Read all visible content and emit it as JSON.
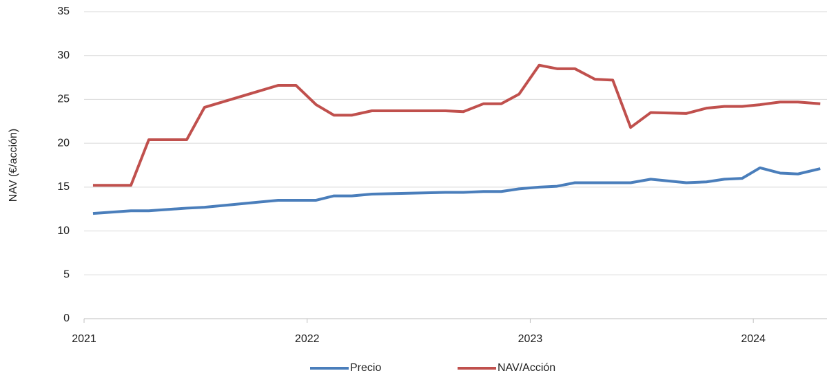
{
  "chart_data": {
    "type": "line",
    "y_label": "NAV (€/acción)",
    "x": [
      2021.04,
      2021.21,
      2021.29,
      2021.46,
      2021.54,
      2021.87,
      2021.95,
      2022.04,
      2022.12,
      2022.2,
      2022.29,
      2022.62,
      2022.7,
      2022.79,
      2022.87,
      2022.95,
      2023.04,
      2023.12,
      2023.2,
      2023.29,
      2023.37,
      2023.45,
      2023.54,
      2023.7,
      2023.79,
      2023.87,
      2023.95,
      2024.03,
      2024.12,
      2024.2,
      2024.3
    ],
    "series": [
      {
        "name": "Precio",
        "color": "#4a7ebb",
        "values": [
          12.0,
          12.3,
          12.3,
          12.6,
          12.7,
          13.5,
          13.5,
          13.5,
          14.0,
          14.0,
          14.2,
          14.4,
          14.4,
          14.5,
          14.5,
          14.8,
          15.0,
          15.1,
          15.5,
          15.5,
          15.5,
          15.5,
          15.9,
          15.5,
          15.6,
          15.9,
          16.0,
          17.2,
          16.6,
          16.5,
          17.1
        ]
      },
      {
        "name": "NAV/Acción",
        "color": "#c0504d",
        "values": [
          15.2,
          15.2,
          20.4,
          20.4,
          24.1,
          26.6,
          26.6,
          24.4,
          23.2,
          23.2,
          23.7,
          23.7,
          23.6,
          24.5,
          24.5,
          25.6,
          28.9,
          28.5,
          28.5,
          27.3,
          27.2,
          21.8,
          23.5,
          23.4,
          24.0,
          24.2,
          24.2,
          24.4,
          24.7,
          24.7,
          24.5
        ]
      }
    ],
    "xlim": [
      2021,
      2024.33
    ],
    "xticks": [
      2021,
      2022,
      2023,
      2024
    ],
    "ylim": [
      0,
      35
    ],
    "yticks": [
      0,
      5,
      10,
      15,
      20,
      25,
      30,
      35
    ],
    "grid": true,
    "legend": "bottom"
  }
}
